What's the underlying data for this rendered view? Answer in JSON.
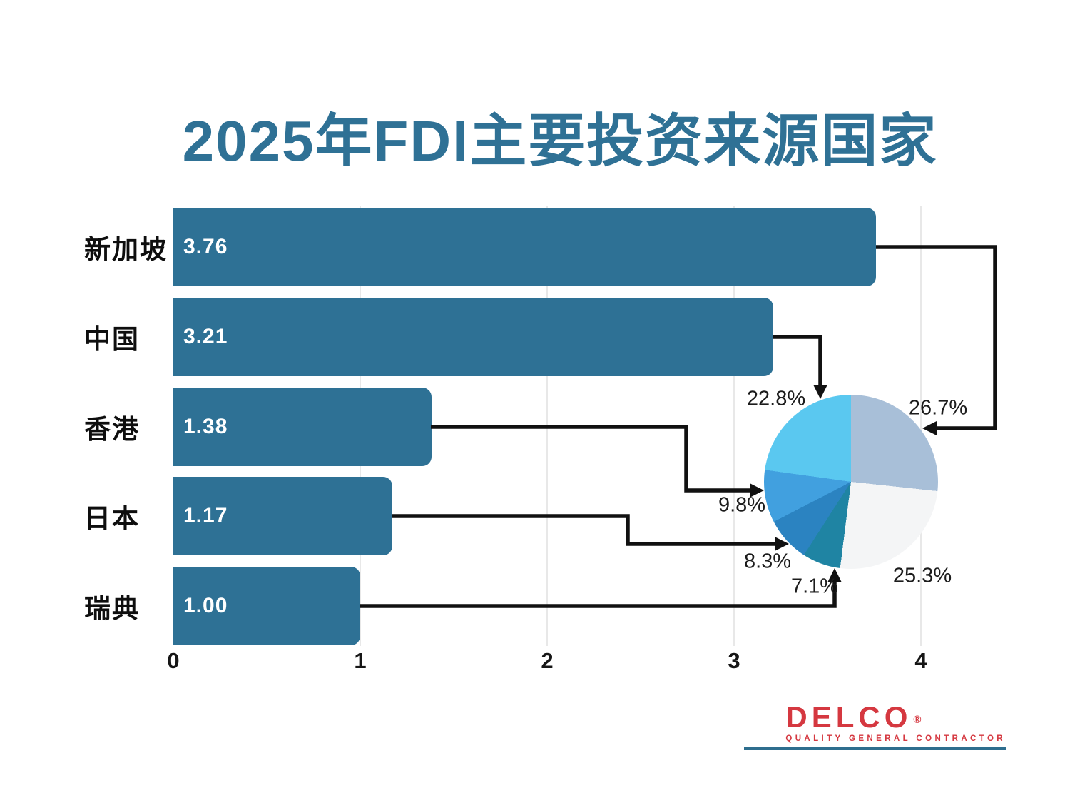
{
  "title": "2025年FDI主要投资来源国家",
  "chart_data": [
    {
      "type": "bar",
      "orientation": "horizontal",
      "title": "2025年FDI主要投资来源国家",
      "categories": [
        "新加坡",
        "中国",
        "香港",
        "日本",
        "瑞典"
      ],
      "values": [
        3.76,
        3.21,
        1.38,
        1.17,
        1.0
      ],
      "value_labels": [
        "3.76",
        "3.21",
        "1.38",
        "1.17",
        "1.00"
      ],
      "xlim": [
        0,
        4.4
      ],
      "x_ticks": [
        "0",
        "1",
        "2",
        "3",
        "4"
      ],
      "grid": "vertical-gridlines-at-1-2-3-4",
      "bar_color": "#2E7195"
    },
    {
      "type": "pie",
      "start_angle": "12-o-clock",
      "direction": "clockwise",
      "slices": [
        {
          "label": "26.7%",
          "value": 26.7,
          "color": "#A8BFD8",
          "linked_category": "新加坡"
        },
        {
          "label": "25.3%",
          "value": 25.3,
          "color": "#F4F5F6",
          "linked_category": ""
        },
        {
          "label": "7.1%",
          "value": 7.1,
          "color": "#1F84A3",
          "linked_category": "瑞典"
        },
        {
          "label": "8.3%",
          "value": 8.3,
          "color": "#2B83C1",
          "linked_category": "日本"
        },
        {
          "label": "9.8%",
          "value": 9.8,
          "color": "#41A0DF",
          "linked_category": "香港"
        },
        {
          "label": "22.8%",
          "value": 22.8,
          "color": "#5AC8F0",
          "linked_category": "中国"
        }
      ]
    }
  ],
  "logo": {
    "brand": "DELCO",
    "registered_mark": "®",
    "tagline": "QUALITY GENERAL CONTRACTOR",
    "brand_color": "#D53840",
    "underline_color": "#2E6E8E"
  },
  "colors": {
    "title": "#2F7195",
    "bar": "#2E7195",
    "connector": "#111111",
    "grid": "#E8E8E8",
    "axis_text": "#161616",
    "background": "#FFFFFF"
  }
}
